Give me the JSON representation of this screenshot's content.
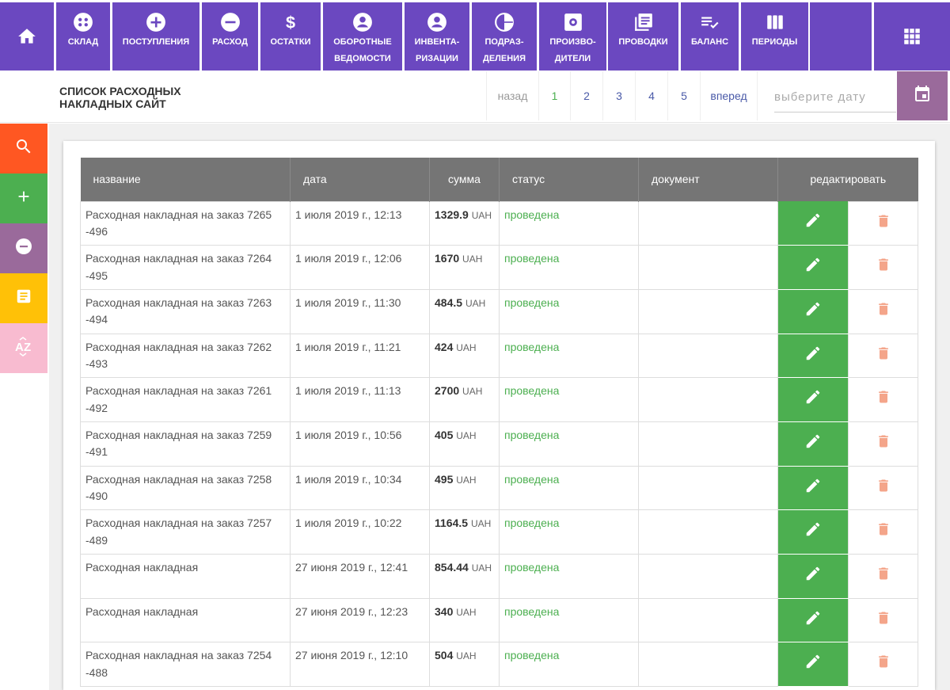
{
  "nav": {
    "home_icon": "home-icon",
    "items": [
      {
        "label": "склад",
        "icon": "warehouse-icon"
      },
      {
        "label": "поступления",
        "icon": "plus-circle-icon"
      },
      {
        "label": "расход",
        "icon": "minus-circle-icon"
      },
      {
        "label": "остатки",
        "icon": "dollar-icon"
      },
      {
        "label": "оборотные ведомости",
        "icon": "account-circle-icon"
      },
      {
        "label": "инвента-ризации",
        "icon": "account-circle-icon"
      },
      {
        "label": "подраз-деления",
        "icon": "pie-chart-icon"
      },
      {
        "label": "произво-дители",
        "icon": "settings-box-icon"
      },
      {
        "label": "проводки",
        "icon": "library-books-icon"
      },
      {
        "label": "баланс",
        "icon": "playlist-check-icon"
      },
      {
        "label": "периоды",
        "icon": "view-week-icon"
      }
    ],
    "apps_icon": "apps-grid-icon",
    "color": "#6b48c0"
  },
  "header": {
    "title": "Список расходных накладных сайт",
    "pager": {
      "prev": "назад",
      "pages": [
        "1",
        "2",
        "3",
        "4",
        "5"
      ],
      "active": "1",
      "next": "вперед"
    },
    "date_placeholder": "выберите дату"
  },
  "side_tools": [
    {
      "icon": "search-icon",
      "color": "#ff5722"
    },
    {
      "icon": "plus-icon",
      "color": "#4caf50"
    },
    {
      "icon": "minus-circle-icon",
      "color": "#9a6a9b"
    },
    {
      "icon": "document-icon",
      "color": "#ffc107"
    },
    {
      "icon": "sort-az-icon",
      "color": "#f8bbd0"
    }
  ],
  "table": {
    "columns": [
      "название",
      "дата",
      "сумма",
      "статус",
      "документ",
      "редактировать"
    ],
    "rows": [
      {
        "name": "Расходная накладная на заказ 7265 -496",
        "date": "1 июля 2019 г., 12:13",
        "amount": "1329.9",
        "currency": "UAH",
        "status": "проведена",
        "document": ""
      },
      {
        "name": "Расходная накладная на заказ 7264 -495",
        "date": "1 июля 2019 г., 12:06",
        "amount": "1670",
        "currency": "UAH",
        "status": "проведена",
        "document": ""
      },
      {
        "name": "Расходная накладная на заказ 7263 -494",
        "date": "1 июля 2019 г., 11:30",
        "amount": "484.5",
        "currency": "UAH",
        "status": "проведена",
        "document": ""
      },
      {
        "name": "Расходная накладная на заказ 7262 -493",
        "date": "1 июля 2019 г., 11:21",
        "amount": "424",
        "currency": "UAH",
        "status": "проведена",
        "document": ""
      },
      {
        "name": "Расходная накладная на заказ 7261 -492",
        "date": "1 июля 2019 г., 11:13",
        "amount": "2700",
        "currency": "UAH",
        "status": "проведена",
        "document": ""
      },
      {
        "name": "Расходная накладная на заказ 7259 -491",
        "date": "1 июля 2019 г., 10:56",
        "amount": "405",
        "currency": "UAH",
        "status": "проведена",
        "document": ""
      },
      {
        "name": "Расходная накладная на заказ 7258 -490",
        "date": "1 июля 2019 г., 10:34",
        "amount": "495",
        "currency": "UAH",
        "status": "проведена",
        "document": ""
      },
      {
        "name": "Расходная накладная на заказ 7257 -489",
        "date": "1 июля 2019 г., 10:22",
        "amount": "1164.5",
        "currency": "UAH",
        "status": "проведена",
        "document": ""
      },
      {
        "name": "Расходная накладная",
        "date": "27 июня 2019 г., 12:41",
        "amount": "854.44",
        "currency": "UAH",
        "status": "проведена",
        "document": ""
      },
      {
        "name": "Расходная накладная",
        "date": "27 июня 2019 г., 12:23",
        "amount": "340",
        "currency": "UAH",
        "status": "проведена",
        "document": ""
      },
      {
        "name": "Расходная накладная на заказ 7254 -488",
        "date": "27 июня 2019 г., 12:10",
        "amount": "504",
        "currency": "UAH",
        "status": "проведена",
        "document": ""
      }
    ]
  },
  "colors": {
    "edit_button": "#4caf50",
    "delete_icon": "#f4a58a",
    "status": "#4caf50",
    "table_header": "#757575"
  }
}
